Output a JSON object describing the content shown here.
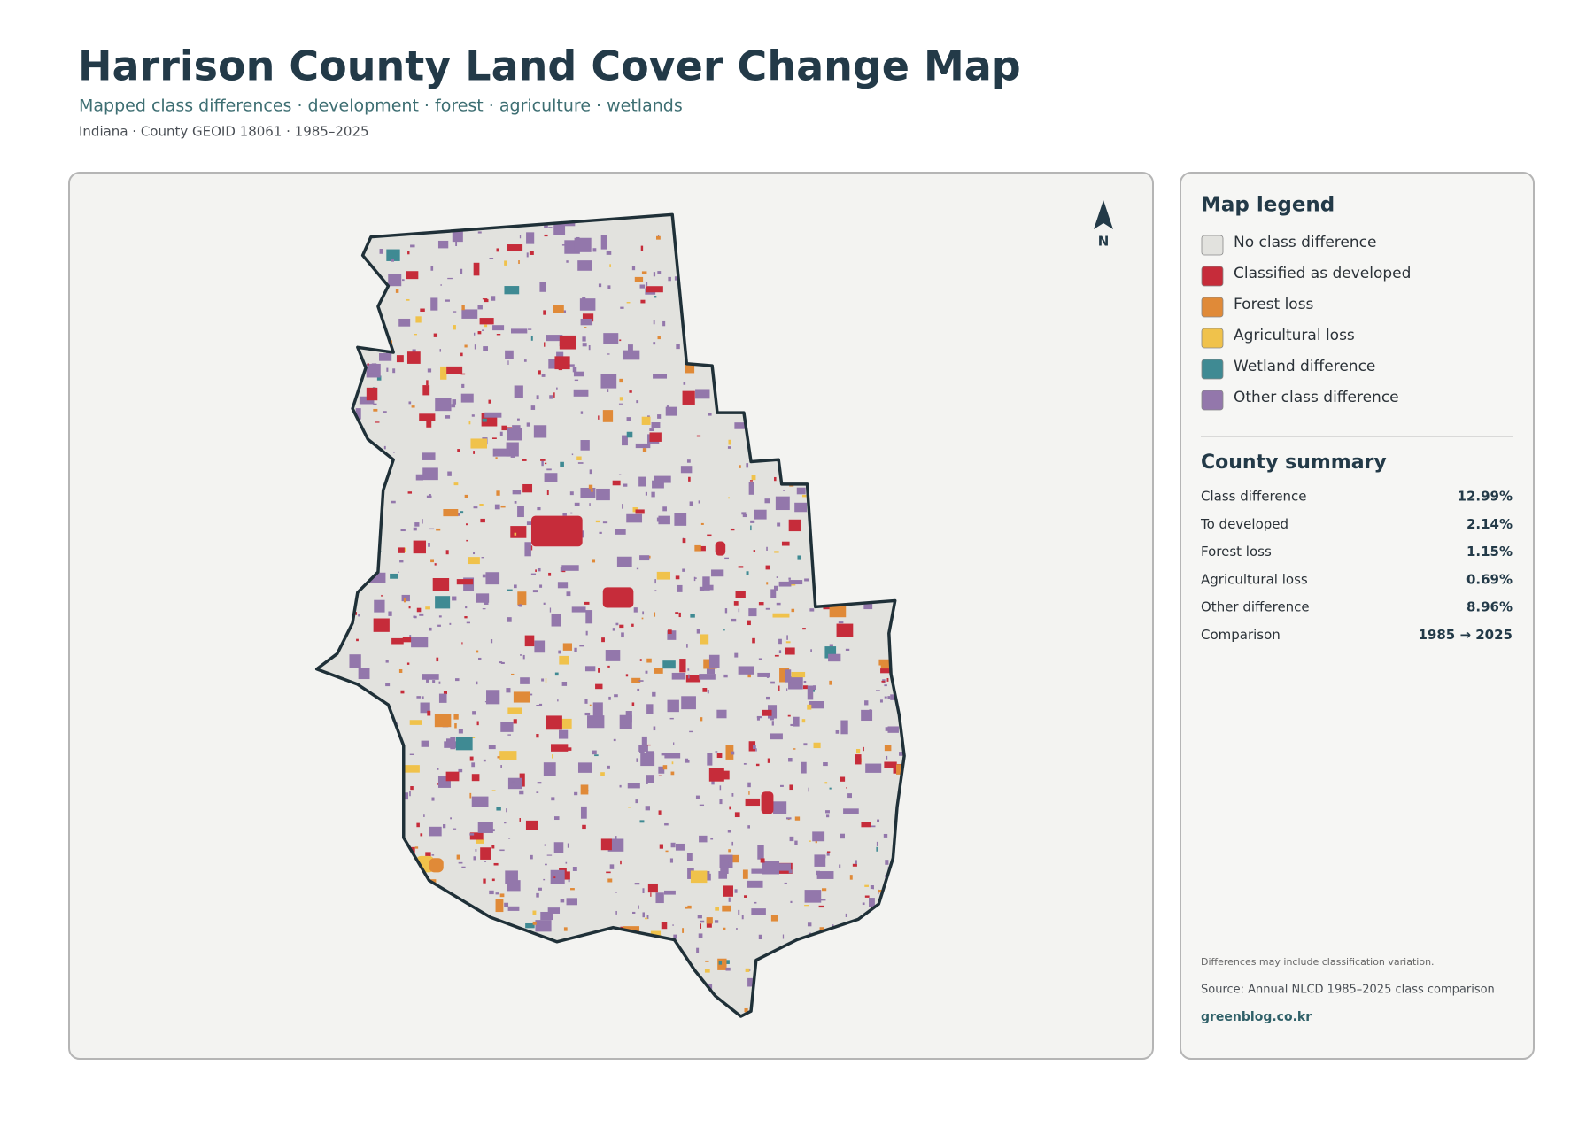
{
  "header": {
    "title": "Harrison County Land Cover Change Map",
    "subtitle": "Mapped class differences · development · forest · agriculture · wetlands",
    "meta": "Indiana · County GEOID 18061 · 1985–2025"
  },
  "map": {
    "north_label": "N"
  },
  "legend": {
    "title": "Map legend",
    "items": [
      {
        "label": "No class difference",
        "color": "#e2e2de"
      },
      {
        "label": "Classified as developed",
        "color": "#c62c3a"
      },
      {
        "label": "Forest loss",
        "color": "#e08a38"
      },
      {
        "label": "Agricultural loss",
        "color": "#f0c24b"
      },
      {
        "label": "Wetland difference",
        "color": "#3f8a93"
      },
      {
        "label": "Other class difference",
        "color": "#9377ab"
      }
    ]
  },
  "summary": {
    "title": "County summary",
    "rows": [
      {
        "label": "Class difference",
        "value": "12.99%"
      },
      {
        "label": "To developed",
        "value": "2.14%"
      },
      {
        "label": "Forest loss",
        "value": "1.15%"
      },
      {
        "label": "Agricultural loss",
        "value": "0.69%"
      },
      {
        "label": "Other difference",
        "value": "8.96%"
      },
      {
        "label": "Comparison",
        "value": "1985 → 2025"
      }
    ]
  },
  "notes": {
    "caveat": "Differences may include classification variation.",
    "source": "Source: Annual NLCD 1985–2025 class comparison",
    "site": "greenblog.co.kr"
  }
}
